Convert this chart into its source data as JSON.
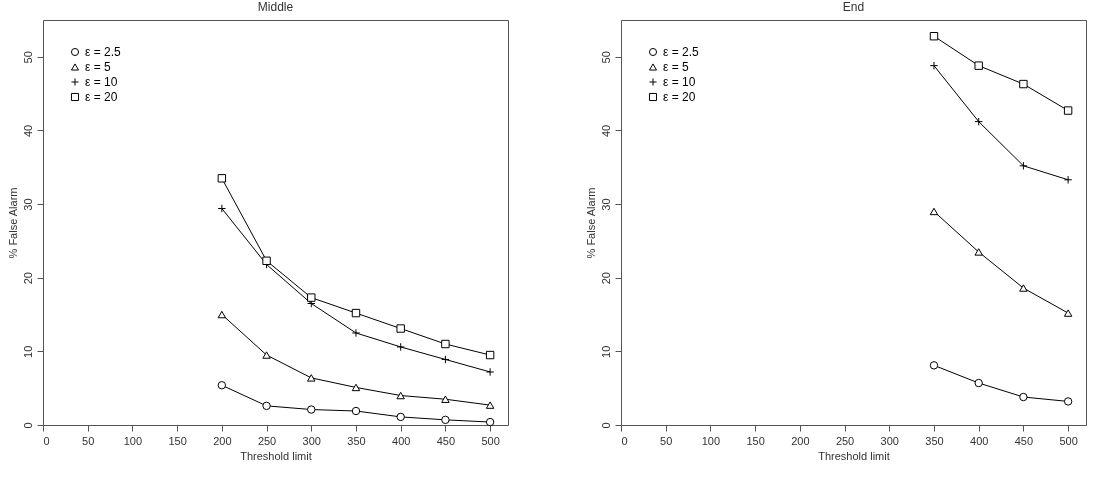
{
  "chart_data": [
    {
      "type": "line",
      "title": "Middle",
      "xlabel": "Threshold limit",
      "ylabel": "% False Alarm",
      "x": [
        200,
        250,
        300,
        350,
        400,
        450,
        500
      ],
      "xlim": [
        0,
        520
      ],
      "xticks": [
        0,
        50,
        100,
        150,
        200,
        250,
        300,
        350,
        400,
        450,
        500
      ],
      "ylim": [
        0,
        55
      ],
      "yticks": [
        0,
        10,
        20,
        30,
        40,
        50
      ],
      "legend": "top left",
      "grid": false,
      "series": [
        {
          "name": "ε = 2.5",
          "color": "#000000",
          "marker": "circle",
          "values": [
            5.4,
            2.6,
            2.1,
            1.9,
            1.1,
            0.7,
            0.4
          ]
        },
        {
          "name": "ε = 5",
          "color": "#000000",
          "marker": "triangle",
          "values": [
            15.0,
            9.5,
            6.4,
            5.1,
            4.0,
            3.5,
            2.7
          ]
        },
        {
          "name": "ε = 10",
          "color": "#000000",
          "marker": "cross",
          "values": [
            29.4,
            21.8,
            16.5,
            12.5,
            10.6,
            8.9,
            7.2
          ]
        },
        {
          "name": "ε = 20",
          "color": "#000000",
          "marker": "square",
          "values": [
            33.5,
            22.3,
            17.3,
            15.2,
            13.1,
            11.0,
            9.5
          ]
        }
      ]
    },
    {
      "type": "line",
      "title": "End",
      "xlabel": "Threshold limit",
      "ylabel": "% False Alarm",
      "x": [
        350,
        400,
        450,
        500
      ],
      "xlim": [
        0,
        520
      ],
      "xticks": [
        0,
        50,
        100,
        150,
        200,
        250,
        300,
        350,
        400,
        450,
        500
      ],
      "ylim": [
        0,
        55
      ],
      "yticks": [
        0,
        10,
        20,
        30,
        40,
        50
      ],
      "legend": "top left",
      "grid": false,
      "series": [
        {
          "name": "ε = 2.5",
          "color": "#000000",
          "marker": "circle",
          "values": [
            8.1,
            5.7,
            3.8,
            3.2
          ]
        },
        {
          "name": "ε = 5",
          "color": "#000000",
          "marker": "triangle",
          "values": [
            29.0,
            23.5,
            18.6,
            15.2
          ]
        },
        {
          "name": "ε = 10",
          "color": "#000000",
          "marker": "cross",
          "values": [
            48.8,
            41.2,
            35.2,
            33.3
          ]
        },
        {
          "name": "ε = 20",
          "color": "#000000",
          "marker": "square",
          "values": [
            52.8,
            48.8,
            46.3,
            42.7
          ]
        }
      ]
    }
  ]
}
